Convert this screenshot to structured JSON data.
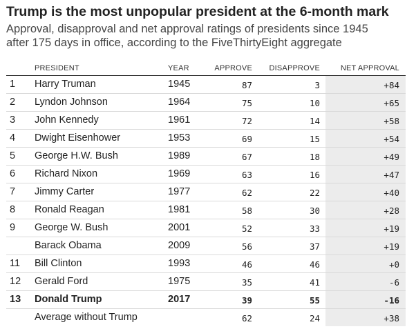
{
  "title": "Trump is the most unpopular president at the 6-month mark",
  "subtitle": [
    "Approval, disapproval and net approval ratings of presidents since 1945",
    "after 175 days in office, according to the FiveThirtyEight aggregate"
  ],
  "columns": {
    "president": "PRESIDENT",
    "year": "YEAR",
    "approve": "APPROVE",
    "disapprove": "DISAPPROVE",
    "net": "NET APPROVAL"
  },
  "chart_data": {
    "type": "table",
    "title": "Trump is the most unpopular president at the 6-month mark",
    "rows": [
      {
        "rank": "1",
        "president": "Harry Truman",
        "year": "1945",
        "approve": "87",
        "disapprove": "3",
        "net": "+84"
      },
      {
        "rank": "2",
        "president": "Lyndon Johnson",
        "year": "1964",
        "approve": "75",
        "disapprove": "10",
        "net": "+65"
      },
      {
        "rank": "3",
        "president": "John Kennedy",
        "year": "1961",
        "approve": "72",
        "disapprove": "14",
        "net": "+58"
      },
      {
        "rank": "4",
        "president": "Dwight Eisenhower",
        "year": "1953",
        "approve": "69",
        "disapprove": "15",
        "net": "+54"
      },
      {
        "rank": "5",
        "president": "George H.W. Bush",
        "year": "1989",
        "approve": "67",
        "disapprove": "18",
        "net": "+49"
      },
      {
        "rank": "6",
        "president": "Richard Nixon",
        "year": "1969",
        "approve": "63",
        "disapprove": "16",
        "net": "+47"
      },
      {
        "rank": "7",
        "president": "Jimmy Carter",
        "year": "1977",
        "approve": "62",
        "disapprove": "22",
        "net": "+40"
      },
      {
        "rank": "8",
        "president": "Ronald Reagan",
        "year": "1981",
        "approve": "58",
        "disapprove": "30",
        "net": "+28"
      },
      {
        "rank": "9",
        "president": "George W. Bush",
        "year": "2001",
        "approve": "52",
        "disapprove": "33",
        "net": "+19"
      },
      {
        "rank": "",
        "president": "Barack Obama",
        "year": "2009",
        "approve": "56",
        "disapprove": "37",
        "net": "+19"
      },
      {
        "rank": "11",
        "president": "Bill Clinton",
        "year": "1993",
        "approve": "46",
        "disapprove": "46",
        "net": "+0"
      },
      {
        "rank": "12",
        "president": "Gerald Ford",
        "year": "1975",
        "approve": "35",
        "disapprove": "41",
        "net": "-6"
      },
      {
        "rank": "13",
        "president": "Donald Trump",
        "year": "2017",
        "approve": "39",
        "disapprove": "55",
        "net": "-16",
        "highlight": true
      },
      {
        "rank": "",
        "president": "Average without Trump",
        "year": "",
        "approve": "62",
        "disapprove": "24",
        "net": "+38"
      }
    ]
  }
}
